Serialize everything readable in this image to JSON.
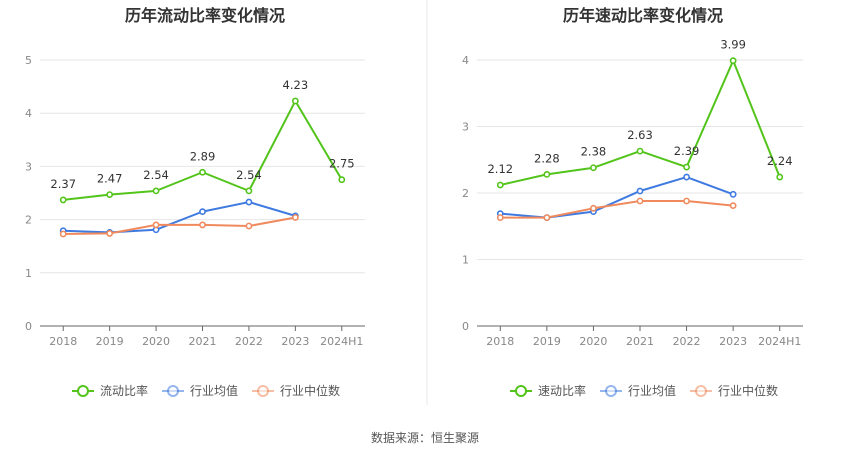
{
  "source": "数据来源：恒生聚源",
  "chart_data": [
    {
      "type": "line",
      "title": "历年流动比率变化情况",
      "categories": [
        "2018",
        "2019",
        "2020",
        "2021",
        "2022",
        "2023",
        "2024H1"
      ],
      "ylim": [
        0,
        5
      ],
      "yticks": [
        "0",
        "1",
        "2",
        "3",
        "4",
        "5"
      ],
      "grid": true,
      "legend_position": "bottom",
      "series": [
        {
          "name": "流动比率",
          "color": "#52c41a",
          "values": [
            2.37,
            2.47,
            2.54,
            2.89,
            2.54,
            4.23,
            2.75
          ],
          "labels": [
            "2.37",
            "2.47",
            "2.54",
            "2.89",
            "2.54",
            "4.23",
            "2.75"
          ]
        },
        {
          "name": "行业均值",
          "color": "#3f7ae0",
          "values": [
            1.79,
            1.76,
            1.81,
            2.15,
            2.33,
            2.07,
            null
          ]
        },
        {
          "name": "行业中位数",
          "color": "#f08a5d",
          "values": [
            1.73,
            1.74,
            1.9,
            1.9,
            1.88,
            2.04,
            null
          ]
        }
      ]
    },
    {
      "type": "line",
      "title": "历年速动比率变化情况",
      "categories": [
        "2018",
        "2019",
        "2020",
        "2021",
        "2022",
        "2023",
        "2024H1"
      ],
      "ylim": [
        0,
        4
      ],
      "yticks": [
        "0",
        "1",
        "2",
        "3",
        "4"
      ],
      "grid": true,
      "legend_position": "bottom",
      "series": [
        {
          "name": "速动比率",
          "color": "#52c41a",
          "values": [
            2.12,
            2.28,
            2.38,
            2.63,
            2.39,
            3.99,
            2.24
          ],
          "labels": [
            "2.12",
            "2.28",
            "2.38",
            "2.63",
            "2.39",
            "3.99",
            "2.24"
          ]
        },
        {
          "name": "行业均值",
          "color": "#3f7ae0",
          "values": [
            1.69,
            1.63,
            1.72,
            2.03,
            2.24,
            1.98,
            null
          ]
        },
        {
          "name": "行业中位数",
          "color": "#f08a5d",
          "values": [
            1.63,
            1.63,
            1.77,
            1.88,
            1.88,
            1.81,
            null
          ]
        }
      ]
    }
  ]
}
